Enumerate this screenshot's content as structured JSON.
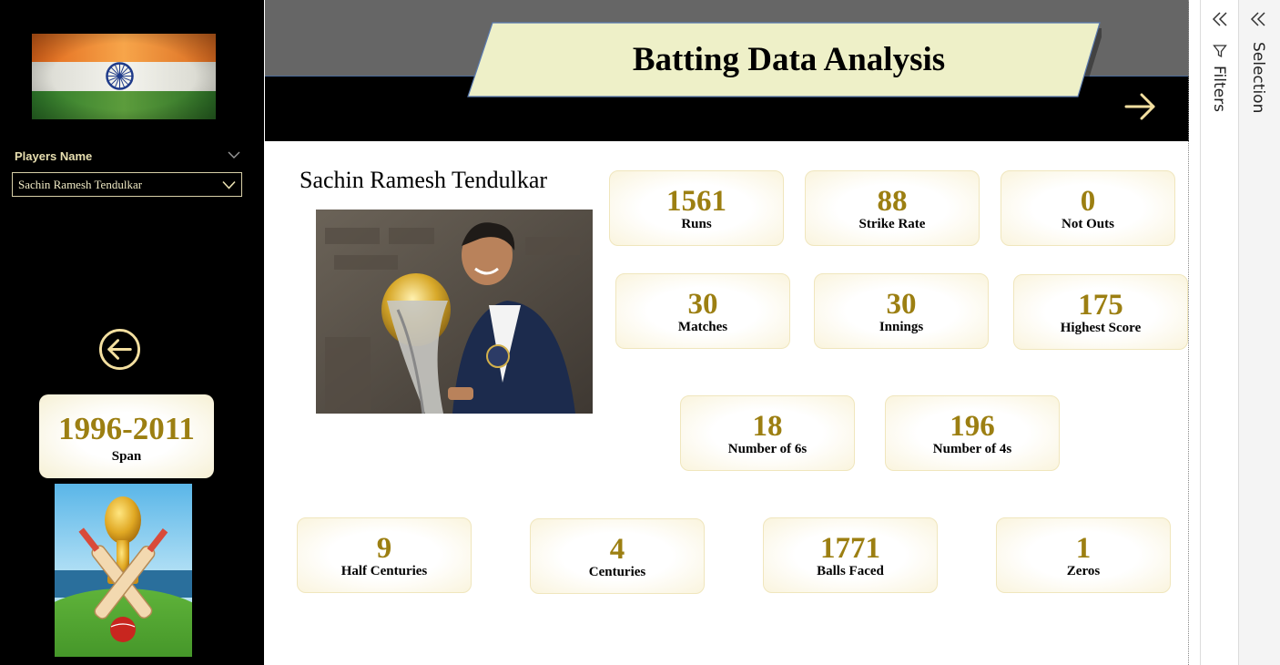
{
  "sidebar": {
    "slicer_title": "Players Name",
    "slicer_value": "Sachin Ramesh Tendulkar",
    "span": {
      "value": "1996-2011",
      "label": "Span"
    },
    "icons": [
      "india-flag",
      "back-arrow-icon",
      "trophy-bats-illustration"
    ]
  },
  "header": {
    "title": "Batting Data Analysis",
    "next_icon": "arrow-right-icon"
  },
  "player": {
    "name": "Sachin Ramesh Tendulkar",
    "photo": "player-photo"
  },
  "stats": {
    "runs": {
      "value": "1561",
      "label": "Runs"
    },
    "strike_rate": {
      "value": "88",
      "label": "Strike Rate"
    },
    "not_outs": {
      "value": "0",
      "label": "Not Outs"
    },
    "matches": {
      "value": "30",
      "label": "Matches"
    },
    "innings": {
      "value": "30",
      "label": "Innings"
    },
    "highest_score": {
      "value": "175",
      "label": "Highest Score"
    },
    "sixes": {
      "value": "18",
      "label": "Number of 6s"
    },
    "fours": {
      "value": "196",
      "label": "Number of 4s"
    },
    "half_centuries": {
      "value": "9",
      "label": "Half Centuries"
    },
    "centuries": {
      "value": "4",
      "label": "Centuries"
    },
    "balls_faced": {
      "value": "1771",
      "label": "Balls Faced"
    },
    "zeros": {
      "value": "1",
      "label": "Zeros"
    }
  },
  "panes": {
    "filters_label": "Filters",
    "selection_label": "Selection"
  },
  "colors": {
    "accent_gold": "#9c7f12",
    "banner_fill": "#eef0c8",
    "sidebar_bg": "#000000",
    "header_gray": "#666666"
  }
}
